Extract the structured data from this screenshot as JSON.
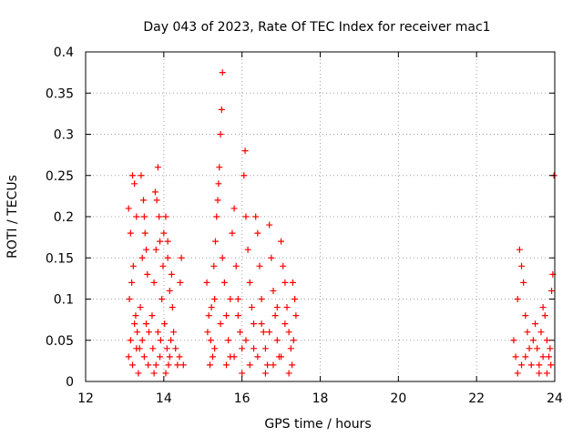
{
  "chart_data": {
    "type": "scatter",
    "title": "Day 043 of 2023, Rate Of TEC Index for receiver mac1",
    "xlabel": "GPS time / hours",
    "ylabel": "ROTI / TECUs",
    "xlim": [
      12,
      24
    ],
    "ylim": [
      0,
      0.4
    ],
    "xticks": [
      12,
      14,
      16,
      18,
      20,
      22,
      24
    ],
    "xtick_labels": [
      "12",
      "14",
      "16",
      "18",
      "20",
      "22",
      "24"
    ],
    "yticks": [
      0,
      0.05,
      0.1,
      0.15,
      0.2,
      0.25,
      0.3,
      0.35,
      0.4
    ],
    "ytick_labels": [
      "0",
      "0.05",
      "0.1",
      "0.15",
      "0.2",
      "0.25",
      "0.3",
      "0.35",
      "0.4"
    ],
    "grid": true,
    "marker": "+",
    "marker_color": "#ff0000",
    "points": [
      [
        13.1,
        0.21
      ],
      [
        13.15,
        0.18
      ],
      [
        13.2,
        0.25
      ],
      [
        13.25,
        0.24
      ],
      [
        13.3,
        0.2
      ],
      [
        13.12,
        0.1
      ],
      [
        13.18,
        0.12
      ],
      [
        13.22,
        0.14
      ],
      [
        13.28,
        0.08
      ],
      [
        13.32,
        0.06
      ],
      [
        13.1,
        0.03
      ],
      [
        13.15,
        0.05
      ],
      [
        13.2,
        0.02
      ],
      [
        13.25,
        0.07
      ],
      [
        13.3,
        0.04
      ],
      [
        13.35,
        0.01
      ],
      [
        13.4,
        0.09
      ],
      [
        13.45,
        0.15
      ],
      [
        13.5,
        0.2
      ],
      [
        13.55,
        0.16
      ],
      [
        13.42,
        0.25
      ],
      [
        13.48,
        0.22
      ],
      [
        13.52,
        0.18
      ],
      [
        13.58,
        0.13
      ],
      [
        13.45,
        0.05
      ],
      [
        13.5,
        0.03
      ],
      [
        13.55,
        0.07
      ],
      [
        13.6,
        0.02
      ],
      [
        13.38,
        0.04
      ],
      [
        13.62,
        0.06
      ],
      [
        13.7,
        0.08
      ],
      [
        13.75,
        0.12
      ],
      [
        13.8,
        0.16
      ],
      [
        13.82,
        0.22
      ],
      [
        13.85,
        0.26
      ],
      [
        13.78,
        0.23
      ],
      [
        13.88,
        0.2
      ],
      [
        13.9,
        0.17
      ],
      [
        13.72,
        0.04
      ],
      [
        13.8,
        0.02
      ],
      [
        13.85,
        0.06
      ],
      [
        13.9,
        0.03
      ],
      [
        13.95,
        0.1
      ],
      [
        13.98,
        0.14
      ],
      [
        13.75,
        0.01
      ],
      [
        13.92,
        0.05
      ],
      [
        14.0,
        0.18
      ],
      [
        14.05,
        0.2
      ],
      [
        14.1,
        0.15
      ],
      [
        14.15,
        0.11
      ],
      [
        14.02,
        0.07
      ],
      [
        14.08,
        0.04
      ],
      [
        14.12,
        0.02
      ],
      [
        14.18,
        0.05
      ],
      [
        14.2,
        0.13
      ],
      [
        14.22,
        0.09
      ],
      [
        14.1,
        0.17
      ],
      [
        14.05,
        0.01
      ],
      [
        14.15,
        0.03
      ],
      [
        14.25,
        0.06
      ],
      [
        14.3,
        0.04
      ],
      [
        14.35,
        0.02
      ],
      [
        14.4,
        0.03
      ],
      [
        14.45,
        0.15
      ],
      [
        14.5,
        0.02
      ],
      [
        14.42,
        0.12
      ],
      [
        15.1,
        0.12
      ],
      [
        15.15,
        0.08
      ],
      [
        15.2,
        0.05
      ],
      [
        15.25,
        0.03
      ],
      [
        15.3,
        0.1
      ],
      [
        15.35,
        0.2
      ],
      [
        15.4,
        0.24
      ],
      [
        15.42,
        0.26
      ],
      [
        15.45,
        0.3
      ],
      [
        15.48,
        0.33
      ],
      [
        15.5,
        0.375
      ],
      [
        15.38,
        0.22
      ],
      [
        15.32,
        0.17
      ],
      [
        15.28,
        0.14
      ],
      [
        15.22,
        0.09
      ],
      [
        15.18,
        0.02
      ],
      [
        15.12,
        0.06
      ],
      [
        15.5,
        0.15
      ],
      [
        15.55,
        0.12
      ],
      [
        15.6,
        0.08
      ],
      [
        15.65,
        0.05
      ],
      [
        15.7,
        0.03
      ],
      [
        15.75,
        0.18
      ],
      [
        15.8,
        0.21
      ],
      [
        15.85,
        0.14
      ],
      [
        15.9,
        0.1
      ],
      [
        15.95,
        0.06
      ],
      [
        16.0,
        0.04
      ],
      [
        16.05,
        0.25
      ],
      [
        16.08,
        0.28
      ],
      [
        16.1,
        0.2
      ],
      [
        16.15,
        0.16
      ],
      [
        16.2,
        0.12
      ],
      [
        16.25,
        0.09
      ],
      [
        16.3,
        0.07
      ],
      [
        16.35,
        0.2
      ],
      [
        16.4,
        0.18
      ],
      [
        16.45,
        0.14
      ],
      [
        16.5,
        0.1
      ],
      [
        16.55,
        0.06
      ],
      [
        16.6,
        0.04
      ],
      [
        16.65,
        0.02
      ],
      [
        16.7,
        0.19
      ],
      [
        16.75,
        0.15
      ],
      [
        16.8,
        0.11
      ],
      [
        16.85,
        0.08
      ],
      [
        16.9,
        0.05
      ],
      [
        16.95,
        0.03
      ],
      [
        17.0,
        0.17
      ],
      [
        17.05,
        0.14
      ],
      [
        17.1,
        0.12
      ],
      [
        17.15,
        0.09
      ],
      [
        17.2,
        0.06
      ],
      [
        17.25,
        0.04
      ],
      [
        17.3,
        0.12
      ],
      [
        17.35,
        0.1
      ],
      [
        17.38,
        0.08
      ],
      [
        17.32,
        0.05
      ],
      [
        17.28,
        0.02
      ],
      [
        15.6,
        0.02
      ],
      [
        15.8,
        0.03
      ],
      [
        16.0,
        0.01
      ],
      [
        16.2,
        0.02
      ],
      [
        16.4,
        0.03
      ],
      [
        16.6,
        0.01
      ],
      [
        16.8,
        0.02
      ],
      [
        17.0,
        0.03
      ],
      [
        17.2,
        0.01
      ],
      [
        15.45,
        0.07
      ],
      [
        15.7,
        0.1
      ],
      [
        16.1,
        0.05
      ],
      [
        16.3,
        0.04
      ],
      [
        16.5,
        0.07
      ],
      [
        16.7,
        0.06
      ],
      [
        16.9,
        0.09
      ],
      [
        17.1,
        0.07
      ],
      [
        15.3,
        0.04
      ],
      [
        15.9,
        0.08
      ],
      [
        22.95,
        0.05
      ],
      [
        23.0,
        0.03
      ],
      [
        23.05,
        0.1
      ],
      [
        23.1,
        0.16
      ],
      [
        23.15,
        0.14
      ],
      [
        23.2,
        0.12
      ],
      [
        23.25,
        0.08
      ],
      [
        23.3,
        0.06
      ],
      [
        23.35,
        0.04
      ],
      [
        23.4,
        0.02
      ],
      [
        23.05,
        0.01
      ],
      [
        23.15,
        0.02
      ],
      [
        23.25,
        0.03
      ],
      [
        23.45,
        0.05
      ],
      [
        23.5,
        0.07
      ],
      [
        23.55,
        0.04
      ],
      [
        23.6,
        0.02
      ],
      [
        23.65,
        0.06
      ],
      [
        23.7,
        0.09
      ],
      [
        23.75,
        0.08
      ],
      [
        23.8,
        0.05
      ],
      [
        23.85,
        0.03
      ],
      [
        23.9,
        0.02
      ],
      [
        23.95,
        0.13
      ],
      [
        23.98,
        0.25
      ],
      [
        23.92,
        0.11
      ],
      [
        23.6,
        0.01
      ],
      [
        23.7,
        0.03
      ],
      [
        23.8,
        0.01
      ],
      [
        23.88,
        0.04
      ]
    ]
  }
}
